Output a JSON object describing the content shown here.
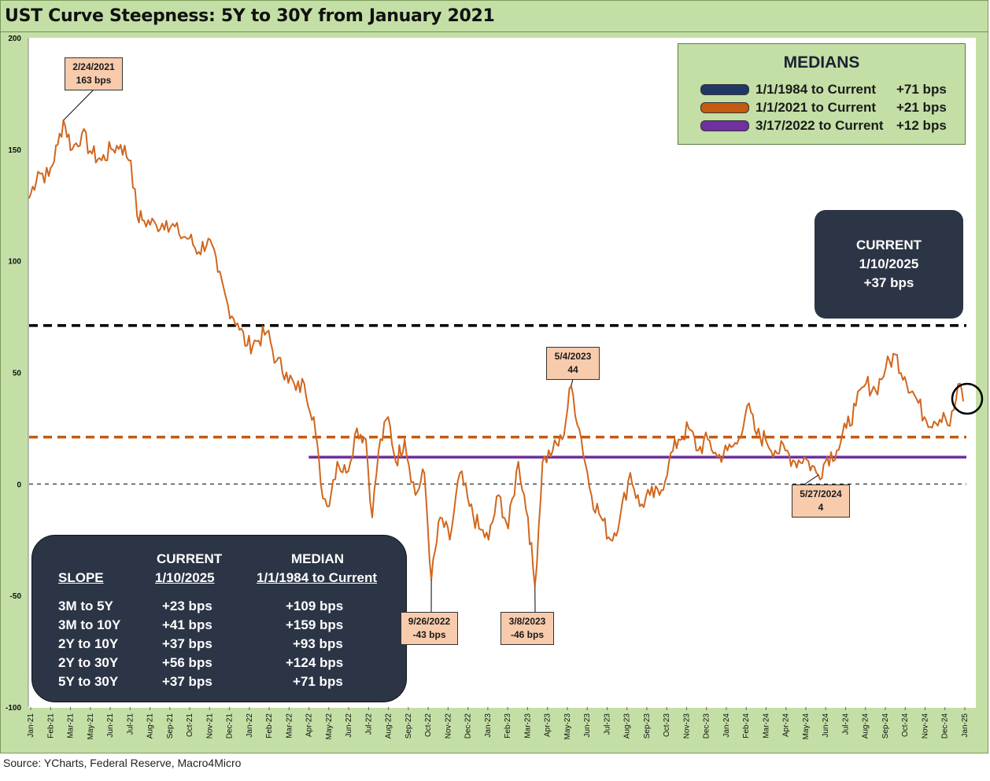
{
  "title": "UST Curve Steepness: 5Y to 30Y from January 2021",
  "source": "Source: YCharts, Federal Reserve, Macro4Micro",
  "colors": {
    "panel_bg": "#c4dfa6",
    "series": "#d0671f",
    "median_1984": "#000000",
    "median_2021": "#c55a11",
    "median_2022": "#7030a0",
    "dark_box": "#2c3546",
    "callout_bg": "#f8cbad"
  },
  "legend": {
    "title": "MEDIANS",
    "items": [
      {
        "range": "1/1/1984 to Current",
        "value": "+71 bps",
        "color": "#203864"
      },
      {
        "range": "1/1/2021 to Current",
        "value": "+21 bps",
        "color": "#c55a11"
      },
      {
        "range": "3/17/2022 to Current",
        "value": "+12 bps",
        "color": "#7030a0"
      }
    ]
  },
  "current_box": {
    "line1": "CURRENT",
    "line2": "1/10/2025",
    "line3": "+37 bps"
  },
  "slope_table": {
    "headers": {
      "current_top": "CURRENT",
      "current_sub": "1/10/2025",
      "median_top": "MEDIAN",
      "median_sub": "1/1/1984 to Current",
      "slope": "SLOPE"
    },
    "rows": [
      {
        "slope": "3M to 5Y",
        "current": "+23  bps",
        "median": "+109 bps"
      },
      {
        "slope": "3M to 10Y",
        "current": "+41 bps",
        "median": "+159 bps"
      },
      {
        "slope": "2Y to 10Y",
        "current": "+37 bps",
        "median": "+93 bps"
      },
      {
        "slope": "2Y to 30Y",
        "current": "+56 bps",
        "median": "+124 bps"
      },
      {
        "slope": "5Y to 30Y",
        "current": "+37 bps",
        "median": "+71 bps"
      }
    ]
  },
  "callouts": [
    {
      "date": "2/24/2021",
      "value": "163 bps"
    },
    {
      "date": "5/4/2023",
      "value": "44"
    },
    {
      "date": "9/26/2022",
      "value": "-43 bps"
    },
    {
      "date": "3/8/2023",
      "value": "-46 bps"
    },
    {
      "date": "5/27/2024",
      "value": "4"
    }
  ],
  "chart_data": {
    "type": "line",
    "title": "UST Curve Steepness: 5Y to 30Y from January 2021",
    "xlabel": "",
    "ylabel": "",
    "ylim": [
      -100,
      200
    ],
    "y_ticks": [
      200,
      150,
      100,
      50,
      0,
      -50,
      -100
    ],
    "x_tick_labels": [
      "Jan-21",
      "Feb-21",
      "Mar-21",
      "May-21",
      "Jun-21",
      "Jul-21",
      "Aug-21",
      "Sep-21",
      "Oct-21",
      "Nov-21",
      "Dec-21",
      "Jan-22",
      "Feb-22",
      "Mar-22",
      "Apr-22",
      "May-22",
      "Jun-22",
      "Jul-22",
      "Aug-22",
      "Sep-22",
      "Oct-22",
      "Nov-22",
      "Dec-22",
      "Jan-23",
      "Feb-23",
      "Mar-23",
      "Apr-23",
      "May-23",
      "Jun-23",
      "Jul-23",
      "Aug-23",
      "Sep-23",
      "Oct-23",
      "Nov-23",
      "Dec-23",
      "Jan-24",
      "Feb-24",
      "Mar-24",
      "Apr-24",
      "May-24",
      "Jun-24",
      "Jul-24",
      "Aug-24",
      "Sep-24",
      "Oct-24",
      "Nov-24",
      "Dec-24",
      "Jan-25"
    ],
    "series": [
      {
        "values_bps_monthly_approx": [
          {
            "x": "2021-01-01",
            "y": 128
          },
          {
            "x": "2021-01-15",
            "y": 140
          },
          {
            "x": "2021-02-01",
            "y": 138
          },
          {
            "x": "2021-02-15",
            "y": 152
          },
          {
            "x": "2021-02-24",
            "y": 163
          },
          {
            "x": "2021-03-10",
            "y": 150
          },
          {
            "x": "2021-03-25",
            "y": 157
          },
          {
            "x": "2021-04-10",
            "y": 148
          },
          {
            "x": "2021-04-25",
            "y": 145
          },
          {
            "x": "2021-05-10",
            "y": 150
          },
          {
            "x": "2021-05-25",
            "y": 152
          },
          {
            "x": "2021-06-10",
            "y": 145
          },
          {
            "x": "2021-06-20",
            "y": 120
          },
          {
            "x": "2021-07-01",
            "y": 118
          },
          {
            "x": "2021-07-20",
            "y": 116
          },
          {
            "x": "2021-08-05",
            "y": 118
          },
          {
            "x": "2021-08-25",
            "y": 112
          },
          {
            "x": "2021-09-10",
            "y": 110
          },
          {
            "x": "2021-09-25",
            "y": 104
          },
          {
            "x": "2021-10-10",
            "y": 110
          },
          {
            "x": "2021-10-25",
            "y": 95
          },
          {
            "x": "2021-11-10",
            "y": 80
          },
          {
            "x": "2021-11-25",
            "y": 72
          },
          {
            "x": "2021-12-10",
            "y": 62
          },
          {
            "x": "2021-12-25",
            "y": 64
          },
          {
            "x": "2022-01-10",
            "y": 68
          },
          {
            "x": "2022-01-25",
            "y": 55
          },
          {
            "x": "2022-02-10",
            "y": 50
          },
          {
            "x": "2022-02-25",
            "y": 42
          },
          {
            "x": "2022-03-10",
            "y": 45
          },
          {
            "x": "2022-03-25",
            "y": 30
          },
          {
            "x": "2022-04-05",
            "y": 0
          },
          {
            "x": "2022-04-15",
            "y": -10
          },
          {
            "x": "2022-05-01",
            "y": 10
          },
          {
            "x": "2022-05-15",
            "y": 5
          },
          {
            "x": "2022-06-01",
            "y": 25
          },
          {
            "x": "2022-06-15",
            "y": 20
          },
          {
            "x": "2022-06-25",
            "y": -15
          },
          {
            "x": "2022-07-05",
            "y": 15
          },
          {
            "x": "2022-07-20",
            "y": 30
          },
          {
            "x": "2022-08-01",
            "y": 10
          },
          {
            "x": "2022-08-15",
            "y": 20
          },
          {
            "x": "2022-09-01",
            "y": -5
          },
          {
            "x": "2022-09-15",
            "y": 5
          },
          {
            "x": "2022-09-26",
            "y": -43
          },
          {
            "x": "2022-10-10",
            "y": -15
          },
          {
            "x": "2022-10-25",
            "y": -25
          },
          {
            "x": "2022-11-10",
            "y": 5
          },
          {
            "x": "2022-11-25",
            "y": -10
          },
          {
            "x": "2022-12-10",
            "y": -20
          },
          {
            "x": "2022-12-25",
            "y": -25
          },
          {
            "x": "2023-01-10",
            "y": -5
          },
          {
            "x": "2023-01-25",
            "y": -20
          },
          {
            "x": "2023-02-10",
            "y": 10
          },
          {
            "x": "2023-02-25",
            "y": -15
          },
          {
            "x": "2023-03-08",
            "y": -46
          },
          {
            "x": "2023-03-20",
            "y": 10
          },
          {
            "x": "2023-04-05",
            "y": 15
          },
          {
            "x": "2023-04-20",
            "y": 20
          },
          {
            "x": "2023-05-04",
            "y": 44
          },
          {
            "x": "2023-05-20",
            "y": 20
          },
          {
            "x": "2023-06-05",
            "y": -5
          },
          {
            "x": "2023-06-20",
            "y": -15
          },
          {
            "x": "2023-07-05",
            "y": -25
          },
          {
            "x": "2023-07-20",
            "y": -15
          },
          {
            "x": "2023-08-05",
            "y": 5
          },
          {
            "x": "2023-08-20",
            "y": -10
          },
          {
            "x": "2023-09-05",
            "y": -5
          },
          {
            "x": "2023-09-20",
            "y": -5
          },
          {
            "x": "2023-10-05",
            "y": 10
          },
          {
            "x": "2023-10-20",
            "y": 20
          },
          {
            "x": "2023-11-05",
            "y": 25
          },
          {
            "x": "2023-11-20",
            "y": 15
          },
          {
            "x": "2023-12-05",
            "y": 20
          },
          {
            "x": "2023-12-20",
            "y": 12
          },
          {
            "x": "2024-01-05",
            "y": 15
          },
          {
            "x": "2024-01-20",
            "y": 18
          },
          {
            "x": "2024-02-05",
            "y": 35
          },
          {
            "x": "2024-02-20",
            "y": 22
          },
          {
            "x": "2024-03-05",
            "y": 20
          },
          {
            "x": "2024-03-20",
            "y": 15
          },
          {
            "x": "2024-04-05",
            "y": 15
          },
          {
            "x": "2024-04-20",
            "y": 10
          },
          {
            "x": "2024-05-05",
            "y": 12
          },
          {
            "x": "2024-05-27",
            "y": 4
          },
          {
            "x": "2024-06-10",
            "y": 12
          },
          {
            "x": "2024-06-25",
            "y": 15
          },
          {
            "x": "2024-07-10",
            "y": 25
          },
          {
            "x": "2024-07-25",
            "y": 35
          },
          {
            "x": "2024-08-10",
            "y": 45
          },
          {
            "x": "2024-08-25",
            "y": 42
          },
          {
            "x": "2024-09-10",
            "y": 52
          },
          {
            "x": "2024-09-25",
            "y": 58
          },
          {
            "x": "2024-10-10",
            "y": 48
          },
          {
            "x": "2024-10-25",
            "y": 40
          },
          {
            "x": "2024-11-10",
            "y": 30
          },
          {
            "x": "2024-11-25",
            "y": 28
          },
          {
            "x": "2024-12-10",
            "y": 32
          },
          {
            "x": "2024-12-20",
            "y": 26
          },
          {
            "x": "2025-01-05",
            "y": 45
          },
          {
            "x": "2025-01-10",
            "y": 37
          }
        ]
      }
    ],
    "reference_lines": [
      {
        "y": 71,
        "style": "dashed",
        "color": "#000000"
      },
      {
        "y": 21,
        "style": "dashed",
        "color": "#c55a11"
      },
      {
        "y": 12,
        "style": "solid",
        "color": "#7030a0",
        "from": "2022-03-17"
      },
      {
        "y": 0,
        "style": "dashed-thin",
        "color": "#000000"
      }
    ]
  }
}
